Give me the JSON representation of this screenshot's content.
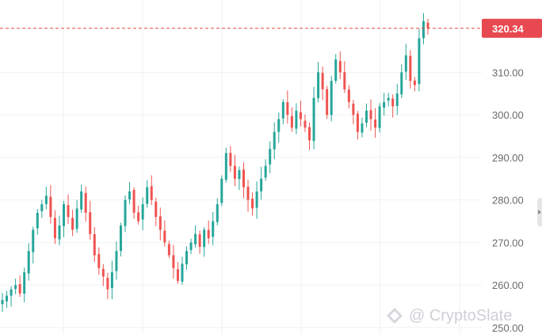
{
  "chart_data": {
    "type": "candlestick",
    "y_ticks": [
      "310.00",
      "300.00",
      "290.00",
      "280.00",
      "270.00",
      "260.00",
      "250.00"
    ],
    "y_tick_values": [
      310,
      300,
      290,
      280,
      270,
      260,
      250
    ],
    "ylim": [
      248.5,
      327
    ],
    "grid": true,
    "last_price": 320.34,
    "last_price_label": "320.34",
    "colors": {
      "up": "#26a69a",
      "down": "#ef5350",
      "price_line": "#e4483f",
      "badge": "#e8484f"
    },
    "close": [
      256.5,
      257.5,
      259,
      260,
      258,
      263,
      268,
      273,
      277,
      279,
      281,
      276,
      271,
      274,
      279,
      276,
      273,
      278,
      282,
      277,
      272,
      267,
      264,
      262,
      259,
      263,
      268,
      274,
      280,
      282,
      277,
      275,
      279,
      283,
      280,
      276,
      273,
      270,
      267,
      264,
      261,
      265,
      268,
      270,
      272,
      269,
      273,
      271,
      275,
      279,
      285,
      291,
      288,
      285,
      287,
      283,
      280,
      278,
      282,
      285,
      288,
      292,
      296,
      299,
      303,
      300,
      297,
      301,
      299,
      297,
      294,
      304,
      310,
      306,
      300,
      308,
      313,
      310,
      306,
      303,
      300,
      296,
      298,
      301,
      299,
      297,
      302,
      303,
      304,
      302,
      305,
      310,
      314,
      308,
      307,
      318,
      322,
      320.34
    ]
  },
  "watermark": {
    "text": "@ CryptoSlate",
    "logo_icon": "diamond-logo-icon"
  }
}
